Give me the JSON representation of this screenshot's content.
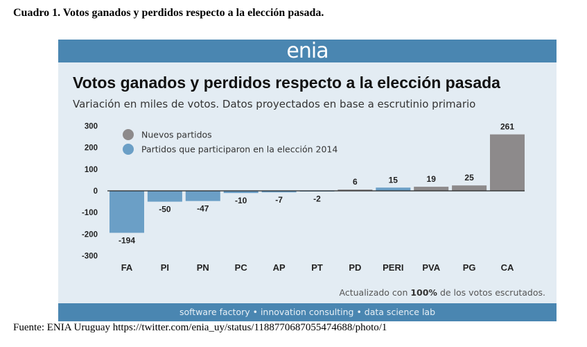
{
  "document": {
    "caption": "Cuadro 1. Votos ganados y perdidos respecto a la elección pasada.",
    "source": "Fuente: ENIA Uruguay https://twitter.com/enia_uy/status/1188770687055474688/photo/1"
  },
  "card": {
    "brand": "enia",
    "footer": "software factory • innovation consulting • data science lab",
    "note_prefix": "Actualizado con ",
    "note_bold": "100%",
    "note_suffix": " de los votos escrutados."
  },
  "colors": {
    "new": "#8d8a8b",
    "old": "#6b9fc6",
    "header": "#4a86b1",
    "background": "#e3ecf3"
  },
  "chart_data": {
    "type": "bar",
    "title": "Votos ganados y perdidos respecto a la elección pasada",
    "subtitle": "Variación en miles de votos. Datos proyectados en base a escrutinio primario",
    "categories": [
      "FA",
      "PI",
      "PN",
      "PC",
      "AP",
      "PT",
      "PD",
      "PERI",
      "PVA",
      "PG",
      "CA"
    ],
    "values": [
      -194,
      -50,
      -47,
      -10,
      -7,
      -2,
      6,
      15,
      19,
      25,
      261
    ],
    "groups": [
      "old",
      "old",
      "old",
      "old",
      "old",
      "old",
      "new",
      "old",
      "new",
      "new",
      "new"
    ],
    "legend": [
      {
        "key": "new",
        "label": "Nuevos partidos"
      },
      {
        "key": "old",
        "label": "Partidos que participaron en la elección 2014"
      }
    ],
    "legend_position": "top-left",
    "ylim": [
      -300,
      300
    ],
    "yticks": [
      300,
      200,
      100,
      0,
      -100,
      -200,
      -300
    ],
    "grid": false
  }
}
